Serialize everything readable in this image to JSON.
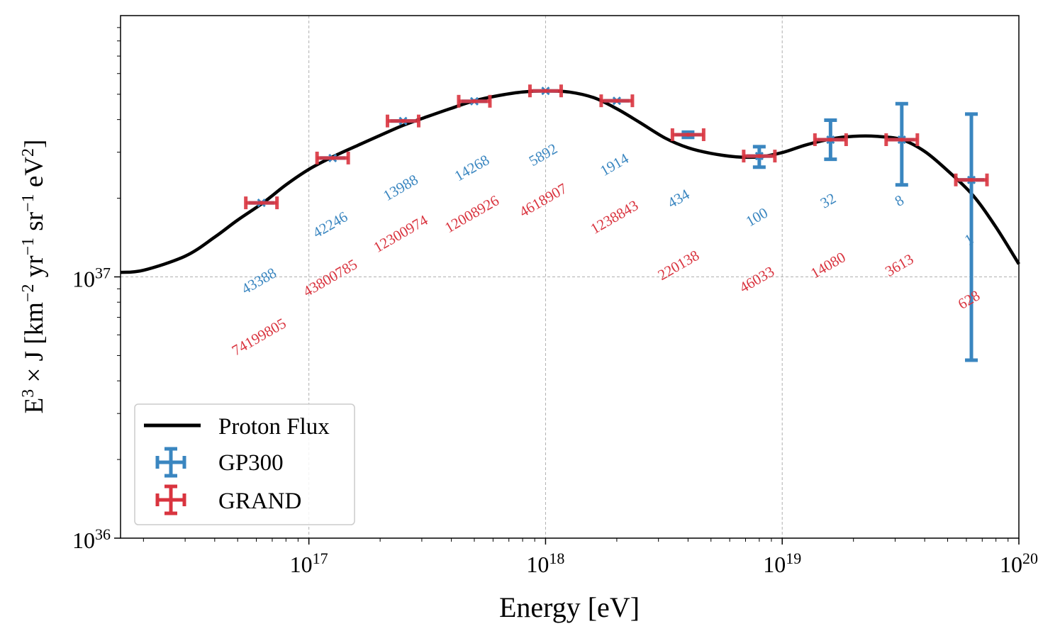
{
  "chart_data": {
    "type": "scatter",
    "xlabel": "Energy [eV]",
    "ylabel_parts": {
      "E": "E",
      "exp3": "3",
      "times": " × J [km",
      "exp_m2": "−2",
      "yr": " yr",
      "exp_m1a": "−1",
      "sr": " sr",
      "exp_m1b": "−1",
      "ev": " eV",
      "exp2": "2",
      "close": "]"
    },
    "x_scale": "log",
    "y_scale": "log",
    "xlim": [
      1.6e+16,
      1e+20
    ],
    "ylim": [
      1e+36,
      1e+38
    ],
    "grid": true,
    "legend_position": "lower-left",
    "x_ticks": [
      {
        "base": "10",
        "exp": "17",
        "value": 1e+17
      },
      {
        "base": "10",
        "exp": "18",
        "value": 1e+18
      },
      {
        "base": "10",
        "exp": "19",
        "value": 1e+19
      },
      {
        "base": "10",
        "exp": "20",
        "value": 1e+20
      }
    ],
    "y_ticks": [
      {
        "base": "10",
        "exp": "36",
        "value": 1e+36
      },
      {
        "base": "10",
        "exp": "37",
        "value": 1e+37
      }
    ],
    "series": [
      {
        "name": "Proton Flux",
        "kind": "line",
        "color": "#000000",
        "x": [
          1.6e+16,
          2e+16,
          3e+16,
          4e+16,
          5e+16,
          6.4e+16,
          8e+16,
          1e+17,
          1.26e+17,
          1.6e+17,
          2e+17,
          2.5e+17,
          3.2e+17,
          4e+17,
          5e+17,
          6.4e+17,
          8e+17,
          1e+18,
          1.26e+18,
          1.6e+18,
          2e+18,
          2.5e+18,
          3.2e+18,
          4e+18,
          5e+18,
          6.4e+18,
          8e+18,
          1e+19,
          1.26e+19,
          1.6e+19,
          2e+19,
          2.5e+19,
          3.2e+19,
          4e+19,
          5e+19,
          6.4e+19,
          8e+19,
          1e+20
        ],
        "y": [
          1.04e+37,
          1.06e+37,
          1.2e+37,
          1.42e+37,
          1.65e+37,
          1.92e+37,
          2.25e+37,
          2.58e+37,
          2.88e+37,
          3.18e+37,
          3.48e+37,
          3.8e+37,
          4.12e+37,
          4.42e+37,
          4.72e+37,
          4.95e+37,
          5.1e+37,
          5.15e+37,
          5.1e+37,
          4.85e+37,
          4.4e+37,
          3.9e+37,
          3.4e+37,
          3.12e+37,
          2.97e+37,
          2.88e+37,
          2.88e+37,
          2.99e+37,
          3.2e+37,
          3.37e+37,
          3.45e+37,
          3.45e+37,
          3.35e+37,
          3.02e+37,
          2.55e+37,
          2.05e+37,
          1.55e+37,
          1.12e+37
        ]
      },
      {
        "name": "GP300",
        "kind": "errorbar",
        "color": "#3a86c0",
        "x": [
          6.3e+16,
          1.26e+17,
          2.5e+17,
          5e+17,
          1e+18,
          2e+18,
          4e+18,
          8e+18,
          1.6e+19,
          3.2e+19,
          6.3e+19
        ],
        "y": [
          1.92e+37,
          2.85e+37,
          3.95e+37,
          4.7e+37,
          5.15e+37,
          4.72e+37,
          3.5e+37,
          2.9e+37,
          3.35e+37,
          3.35e+37,
          2.35e+37
        ],
        "y_low": [
          1.92e+37,
          2.85e+37,
          3.95e+37,
          4.7e+37,
          5.15e+37,
          4.72e+37,
          3.42e+37,
          2.63e+37,
          2.82e+37,
          2.25e+37,
          4.8e+36
        ],
        "y_high": [
          1.92e+37,
          2.85e+37,
          3.95e+37,
          4.7e+37,
          5.15e+37,
          4.72e+37,
          3.58e+37,
          3.15e+37,
          3.98e+37,
          4.6e+37,
          4.2e+37
        ],
        "counts": [
          "43388",
          "42246",
          "13988",
          "14268",
          "5892",
          "1914",
          "434",
          "100",
          "32",
          "8",
          "1"
        ]
      },
      {
        "name": "GRAND",
        "kind": "errorbar",
        "color": "#d9343f",
        "x": [
          6.3e+16,
          1.26e+17,
          2.5e+17,
          5e+17,
          1e+18,
          2e+18,
          4e+18,
          8e+18,
          1.6e+19,
          3.2e+19,
          6.3e+19
        ],
        "y": [
          1.92e+37,
          2.85e+37,
          3.95e+37,
          4.7e+37,
          5.15e+37,
          4.72e+37,
          3.5e+37,
          2.9e+37,
          3.35e+37,
          3.35e+37,
          2.35e+37
        ],
        "counts": [
          "74199805",
          "43800785",
          "12300974",
          "12008926",
          "4618907",
          "1238843",
          "220138",
          "46033",
          "14080",
          "3613",
          "628"
        ]
      }
    ]
  }
}
